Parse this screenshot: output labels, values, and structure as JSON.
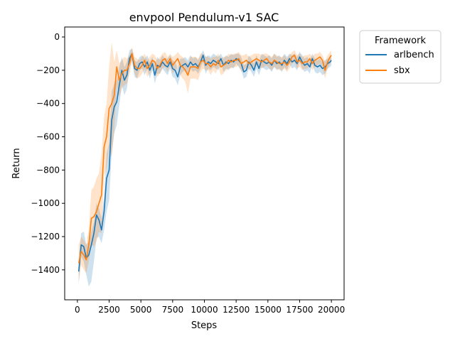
{
  "chart_data": {
    "type": "line",
    "title": "envpool Pendulum-v1 SAC",
    "xlabel": "Steps",
    "ylabel": "Return",
    "xlim": [
      -1000,
      21000
    ],
    "ylim": [
      -1580,
      60
    ],
    "xticks": [
      0,
      2500,
      5000,
      7500,
      10000,
      12500,
      15000,
      17500,
      20000
    ],
    "yticks": [
      0,
      -200,
      -400,
      -600,
      -800,
      -1000,
      -1200,
      -1400
    ],
    "grid": false,
    "legend": {
      "title": "Framework",
      "placement": "outside-top-right"
    },
    "x": [
      100,
      300,
      500,
      700,
      900,
      1100,
      1300,
      1500,
      1700,
      1900,
      2100,
      2300,
      2500,
      2700,
      2900,
      3100,
      3300,
      3500,
      3700,
      3900,
      4100,
      4300,
      4500,
      4700,
      4900,
      5100,
      5300,
      5500,
      5700,
      5900,
      6100,
      6300,
      6500,
      6700,
      6900,
      7100,
      7300,
      7500,
      7700,
      7900,
      8100,
      8300,
      8500,
      8700,
      8900,
      9100,
      9300,
      9500,
      9700,
      9900,
      10100,
      10300,
      10500,
      10700,
      10900,
      11100,
      11300,
      11500,
      11700,
      11900,
      12100,
      12300,
      12500,
      12700,
      12900,
      13100,
      13300,
      13500,
      13700,
      13900,
      14100,
      14300,
      14500,
      14700,
      14900,
      15100,
      15300,
      15500,
      15700,
      15900,
      16100,
      16300,
      16500,
      16700,
      16900,
      17100,
      17300,
      17500,
      17700,
      17900,
      18100,
      18300,
      18500,
      18700,
      18900,
      19100,
      19300,
      19500,
      19700,
      19900,
      20000
    ],
    "series": [
      {
        "name": "arlbench",
        "color": "#1f77b4",
        "values": [
          -1410,
          -1250,
          -1260,
          -1330,
          -1310,
          -1250,
          -1180,
          -1070,
          -1100,
          -1160,
          -1050,
          -850,
          -800,
          -500,
          -420,
          -390,
          -290,
          -200,
          -260,
          -230,
          -130,
          -100,
          -190,
          -200,
          -160,
          -150,
          -180,
          -150,
          -200,
          -160,
          -230,
          -170,
          -180,
          -150,
          -170,
          -180,
          -150,
          -190,
          -200,
          -240,
          -180,
          -170,
          -160,
          -180,
          -150,
          -170,
          -160,
          -180,
          -150,
          -110,
          -170,
          -150,
          -160,
          -140,
          -150,
          -160,
          -130,
          -170,
          -150,
          -160,
          -140,
          -150,
          -130,
          -140,
          -160,
          -210,
          -200,
          -150,
          -170,
          -200,
          -150,
          -190,
          -140,
          -150,
          -160,
          -150,
          -170,
          -140,
          -160,
          -150,
          -170,
          -140,
          -160,
          -130,
          -150,
          -140,
          -160,
          -120,
          -150,
          -170,
          -160,
          -180,
          -130,
          -170,
          -180,
          -170,
          -190,
          -180,
          -160,
          -150,
          -140
        ],
        "band_upper": [
          -1340,
          -1180,
          -1170,
          -1250,
          -1230,
          -1170,
          -1110,
          -1000,
          -1030,
          -1090,
          -960,
          -700,
          -640,
          -330,
          -280,
          -260,
          -180,
          -120,
          -180,
          -150,
          -80,
          -70,
          -140,
          -150,
          -120,
          -110,
          -130,
          -110,
          -150,
          -120,
          -170,
          -120,
          -140,
          -110,
          -130,
          -130,
          -110,
          -140,
          -150,
          -190,
          -130,
          -130,
          -120,
          -140,
          -110,
          -130,
          -120,
          -140,
          -110,
          -80,
          -120,
          -110,
          -120,
          -100,
          -110,
          -120,
          -100,
          -130,
          -110,
          -120,
          -100,
          -110,
          -100,
          -100,
          -120,
          -170,
          -160,
          -110,
          -130,
          -160,
          -110,
          -150,
          -100,
          -110,
          -120,
          -110,
          -130,
          -100,
          -120,
          -110,
          -130,
          -100,
          -120,
          -100,
          -110,
          -100,
          -120,
          -90,
          -110,
          -130,
          -120,
          -140,
          -100,
          -130,
          -140,
          -130,
          -150,
          -140,
          -130,
          -120,
          -110
        ],
        "band_lower": [
          -1480,
          -1320,
          -1350,
          -1430,
          -1500,
          -1470,
          -1350,
          -1210,
          -1200,
          -1240,
          -1160,
          -1050,
          -980,
          -700,
          -580,
          -530,
          -410,
          -290,
          -350,
          -310,
          -190,
          -140,
          -240,
          -250,
          -200,
          -190,
          -230,
          -190,
          -250,
          -200,
          -280,
          -220,
          -220,
          -190,
          -210,
          -230,
          -190,
          -240,
          -250,
          -290,
          -230,
          -210,
          -200,
          -220,
          -190,
          -210,
          -200,
          -220,
          -190,
          -150,
          -220,
          -190,
          -200,
          -180,
          -190,
          -200,
          -160,
          -210,
          -190,
          -200,
          -180,
          -190,
          -160,
          -180,
          -200,
          -250,
          -240,
          -190,
          -210,
          -240,
          -190,
          -230,
          -180,
          -190,
          -200,
          -190,
          -210,
          -180,
          -200,
          -190,
          -210,
          -180,
          -200,
          -160,
          -190,
          -180,
          -200,
          -150,
          -190,
          -210,
          -200,
          -220,
          -160,
          -210,
          -220,
          -210,
          -230,
          -220,
          -190,
          -180,
          -170
        ]
      },
      {
        "name": "sbx",
        "color": "#ff7f0e",
        "values": [
          -1360,
          -1290,
          -1310,
          -1340,
          -1250,
          -1090,
          -1080,
          -1050,
          -1000,
          -950,
          -660,
          -600,
          -430,
          -400,
          -350,
          -180,
          -260,
          -220,
          -200,
          -200,
          -160,
          -100,
          -170,
          -190,
          -190,
          -170,
          -140,
          -190,
          -170,
          -140,
          -150,
          -190,
          -170,
          -140,
          -130,
          -160,
          -130,
          -170,
          -150,
          -130,
          -170,
          -180,
          -200,
          -230,
          -180,
          -180,
          -180,
          -190,
          -150,
          -140,
          -160,
          -160,
          -180,
          -160,
          -170,
          -140,
          -180,
          -170,
          -160,
          -140,
          -150,
          -140,
          -140,
          -130,
          -160,
          -150,
          -140,
          -160,
          -150,
          -140,
          -130,
          -140,
          -150,
          -140,
          -130,
          -150,
          -160,
          -140,
          -150,
          -160,
          -160,
          -150,
          -170,
          -150,
          -120,
          -110,
          -150,
          -140,
          -160,
          -150,
          -150,
          -130,
          -160,
          -140,
          -130,
          -120,
          -140,
          -200,
          -150,
          -120,
          -110
        ],
        "band_upper": [
          -1250,
          -1200,
          -1220,
          -1250,
          -1150,
          -920,
          -900,
          -850,
          -820,
          -700,
          -480,
          -400,
          -180,
          -30,
          -150,
          -80,
          -160,
          -140,
          -120,
          -130,
          -110,
          -60,
          -120,
          -130,
          -140,
          -120,
          -100,
          -140,
          -120,
          -100,
          -110,
          -140,
          -120,
          -100,
          -90,
          -120,
          -100,
          -120,
          -110,
          -90,
          -110,
          -120,
          -140,
          -160,
          -120,
          -120,
          -120,
          -130,
          -100,
          -100,
          -120,
          -120,
          -130,
          -120,
          -120,
          -100,
          -130,
          -120,
          -120,
          -100,
          -110,
          -100,
          -100,
          -90,
          -110,
          -110,
          -100,
          -120,
          -110,
          -100,
          -100,
          -100,
          -110,
          -100,
          -100,
          -110,
          -120,
          -100,
          -110,
          -120,
          -120,
          -110,
          -130,
          -110,
          -90,
          -80,
          -110,
          -100,
          -120,
          -110,
          -110,
          -100,
          -120,
          -100,
          -100,
          -90,
          -110,
          -150,
          -110,
          -90,
          -80
        ],
        "band_lower": [
          -1480,
          -1370,
          -1400,
          -1420,
          -1350,
          -1250,
          -1260,
          -1230,
          -1170,
          -1180,
          -840,
          -790,
          -660,
          -720,
          -560,
          -290,
          -360,
          -310,
          -290,
          -280,
          -220,
          -150,
          -220,
          -250,
          -240,
          -220,
          -190,
          -240,
          -220,
          -190,
          -200,
          -240,
          -220,
          -190,
          -180,
          -210,
          -170,
          -220,
          -200,
          -180,
          -230,
          -250,
          -270,
          -340,
          -250,
          -250,
          -250,
          -260,
          -210,
          -190,
          -200,
          -200,
          -230,
          -200,
          -220,
          -180,
          -230,
          -220,
          -200,
          -190,
          -190,
          -180,
          -180,
          -170,
          -210,
          -200,
          -180,
          -200,
          -190,
          -180,
          -170,
          -180,
          -190,
          -180,
          -170,
          -190,
          -200,
          -180,
          -190,
          -200,
          -200,
          -190,
          -210,
          -190,
          -160,
          -150,
          -190,
          -180,
          -200,
          -190,
          -190,
          -170,
          -200,
          -180,
          -170,
          -160,
          -180,
          -250,
          -190,
          -160,
          -150
        ]
      }
    ]
  }
}
